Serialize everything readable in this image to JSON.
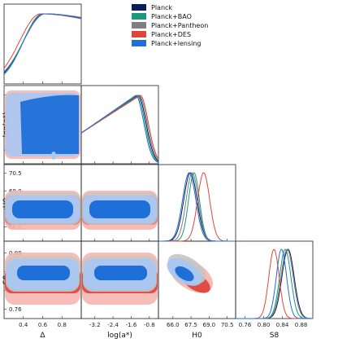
{
  "chart_data": {
    "type": "triangle",
    "parameters": [
      {
        "symbol": "Δ",
        "label": "Δ",
        "ticks": [
          "0.4",
          "0.6",
          "0.8"
        ],
        "range": [
          0.2,
          1.0
        ]
      },
      {
        "symbol": "log(a*)",
        "label": "log(a*)",
        "ticks": [
          "-3.2",
          "-2.4",
          "-1.6",
          "-0.8"
        ],
        "range": [
          -3.8,
          -0.4
        ]
      },
      {
        "symbol": "H0",
        "label": "H0",
        "ticks": [
          "66.0",
          "67.5",
          "69.0",
          "70.5"
        ],
        "range": [
          64.8,
          71.2
        ]
      },
      {
        "symbol": "S8",
        "label": "S8",
        "ticks": [
          "0.76",
          "0.80",
          "0.84",
          "0.88"
        ],
        "range": [
          0.74,
          0.905
        ]
      }
    ],
    "legend": {
      "placement": "top-right",
      "entries": [
        {
          "name": "Planck",
          "color": "#0b1d5e"
        },
        {
          "name": "Planck+BAO",
          "color": "#1a9a7a"
        },
        {
          "name": "Planck+Pantheon",
          "color": "#7f7f7f"
        },
        {
          "name": "Planck+DES",
          "color": "#e0453a"
        },
        {
          "name": "Planck+lensing",
          "color": "#1f6fd8"
        }
      ]
    },
    "marginals": {
      "Δ": {
        "Planck": {
          "mean": 0.62,
          "sigma": 0.22
        },
        "Planck+BAO": {
          "mean": 0.6,
          "sigma": 0.2
        },
        "Planck+Pantheon": {
          "mean": 0.63,
          "sigma": 0.23
        },
        "Planck+DES": {
          "mean": 0.58,
          "sigma": 0.22
        },
        "Planck+lensing": {
          "mean": 0.61,
          "sigma": 0.21
        }
      },
      "log(a*)": {
        "Planck": {
          "peak": -1.3
        },
        "Planck+BAO": {
          "peak": -1.35
        },
        "Planck+Pantheon": {
          "peak": -1.25
        },
        "Planck+DES": {
          "peak": -1.2
        },
        "Planck+lensing": {
          "peak": -1.4
        }
      },
      "H0": {
        "Planck": {
          "mean": 67.45,
          "sigma": 0.55
        },
        "Planck+BAO": {
          "mean": 67.75,
          "sigma": 0.45
        },
        "Planck+Pantheon": {
          "mean": 67.6,
          "sigma": 0.5
        },
        "Planck+DES": {
          "mean": 68.55,
          "sigma": 0.5
        },
        "Planck+lensing": {
          "mean": 67.35,
          "sigma": 0.55
        }
      },
      "S8": {
        "Planck": {
          "mean": 0.852,
          "sigma": 0.013
        },
        "Planck+BAO": {
          "mean": 0.846,
          "sigma": 0.012
        },
        "Planck+Pantheon": {
          "mean": 0.85,
          "sigma": 0.013
        },
        "Planck+DES": {
          "mean": 0.822,
          "sigma": 0.011
        },
        "Planck+lensing": {
          "mean": 0.838,
          "sigma": 0.011
        }
      }
    },
    "contours_2d": {
      "H0_S8_correlation": -0.6,
      "shown_series": [
        "Planck+DES",
        "Planck+Pantheon",
        "Planck+lensing"
      ]
    },
    "colors": {
      "des_outer": "#f6b3ad",
      "des_inner": "#e0453a",
      "pantheon_outer": "#c5c5c5",
      "pantheon_inner": "#9a9a9a",
      "lensing_outer": "#a9c7f2",
      "lensing_inner": "#1f6fd8",
      "bao_line": "#1a9a7a"
    }
  }
}
